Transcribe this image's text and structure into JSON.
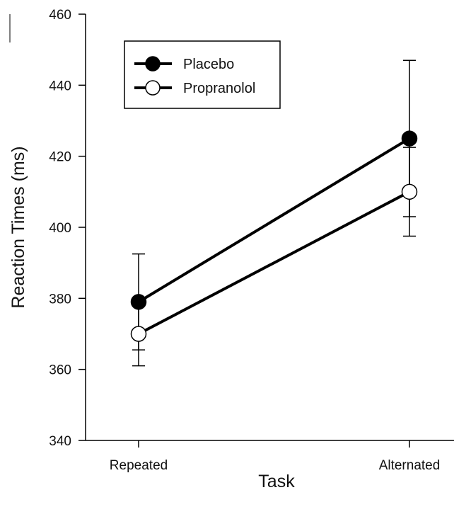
{
  "chart_data": {
    "type": "line",
    "categories": [
      "Repeated",
      "Alternated"
    ],
    "xlabel": "Task",
    "ylabel": "Reaction Times (ms)",
    "ylim": [
      340,
      460
    ],
    "yticks": [
      340,
      360,
      380,
      400,
      420,
      440,
      460
    ],
    "legend_position": "top-left",
    "grid": false,
    "series": [
      {
        "name": "Placebo",
        "marker": "filled-circle",
        "color": "#000000",
        "values": [
          379,
          425
        ],
        "error": [
          13.5,
          22
        ]
      },
      {
        "name": "Propranolol",
        "marker": "open-circle",
        "color": "#000000",
        "values": [
          370,
          410
        ],
        "error": [
          9,
          12.5
        ]
      }
    ]
  }
}
